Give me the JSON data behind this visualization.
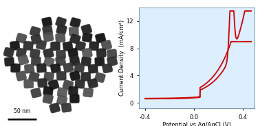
{
  "cv_xlabel": "Potential vs Ag/AgCl (V)",
  "cv_ylabel": "Current Density  (mA/cm²)",
  "cv_xlim": [
    -0.45,
    0.5
  ],
  "cv_ylim": [
    -0.8,
    14
  ],
  "cv_yticks": [
    0,
    4,
    8,
    12
  ],
  "cv_xticks": [
    -0.4,
    0.0,
    0.4
  ],
  "cv_xtick_labels": [
    "-0.4",
    "0.0",
    "0.4"
  ],
  "cv_color": "#cc0000",
  "cv_linewidth": 1.3,
  "plot_bg": "#ddeeff",
  "tem_bg": "#c8cac8",
  "tem_scale_text": "50 nm",
  "figure_bg": "#ffffff"
}
